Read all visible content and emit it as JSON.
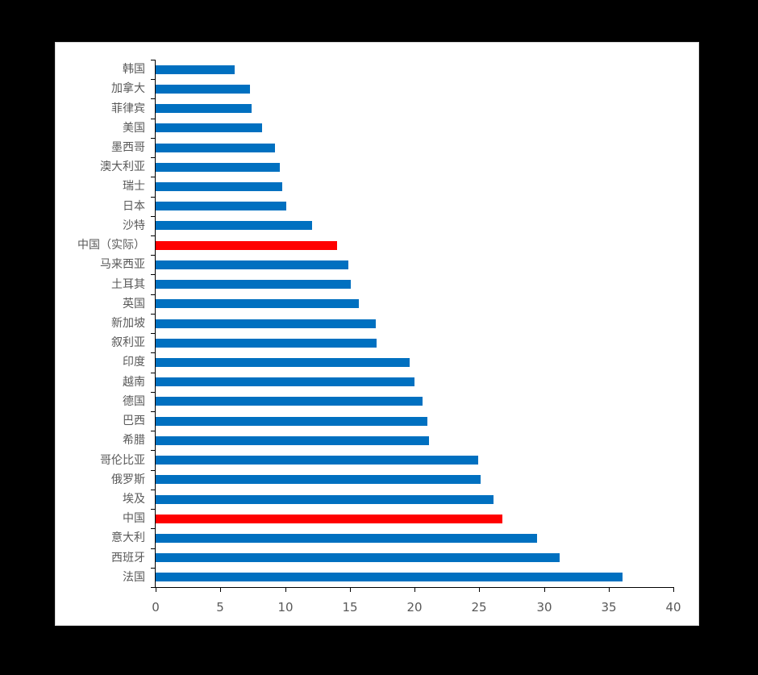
{
  "chart_data": {
    "type": "bar",
    "orientation": "horizontal",
    "title": "",
    "xlabel": "",
    "ylabel": "",
    "xlim": [
      0,
      40
    ],
    "xticks": [
      0,
      5,
      10,
      15,
      20,
      25,
      30,
      35,
      40
    ],
    "grid": false,
    "legend": null,
    "categories": [
      "韩国",
      "加拿大",
      "菲律宾",
      "美国",
      "墨西哥",
      "澳大利亚",
      "瑞士",
      "日本",
      "沙特",
      "中国（实际）",
      "马来西亚",
      "土耳其",
      "英国",
      "新加坡",
      "叙利亚",
      "印度",
      "越南",
      "德国",
      "巴西",
      "希腊",
      "哥伦比亚",
      "俄罗斯",
      "埃及",
      "中国",
      "意大利",
      "西班牙",
      "法国"
    ],
    "values": [
      6.1,
      7.3,
      7.4,
      8.2,
      9.2,
      9.6,
      9.8,
      10.1,
      12.1,
      14.0,
      14.9,
      15.1,
      15.7,
      17.0,
      17.1,
      19.6,
      20.0,
      20.6,
      21.0,
      21.1,
      24.9,
      25.1,
      26.1,
      26.8,
      29.5,
      31.2,
      36.1
    ],
    "highlight": [
      "中国（实际）",
      "中国"
    ],
    "colors": {
      "default": "#0070C0",
      "highlight": "#FF0000"
    }
  }
}
